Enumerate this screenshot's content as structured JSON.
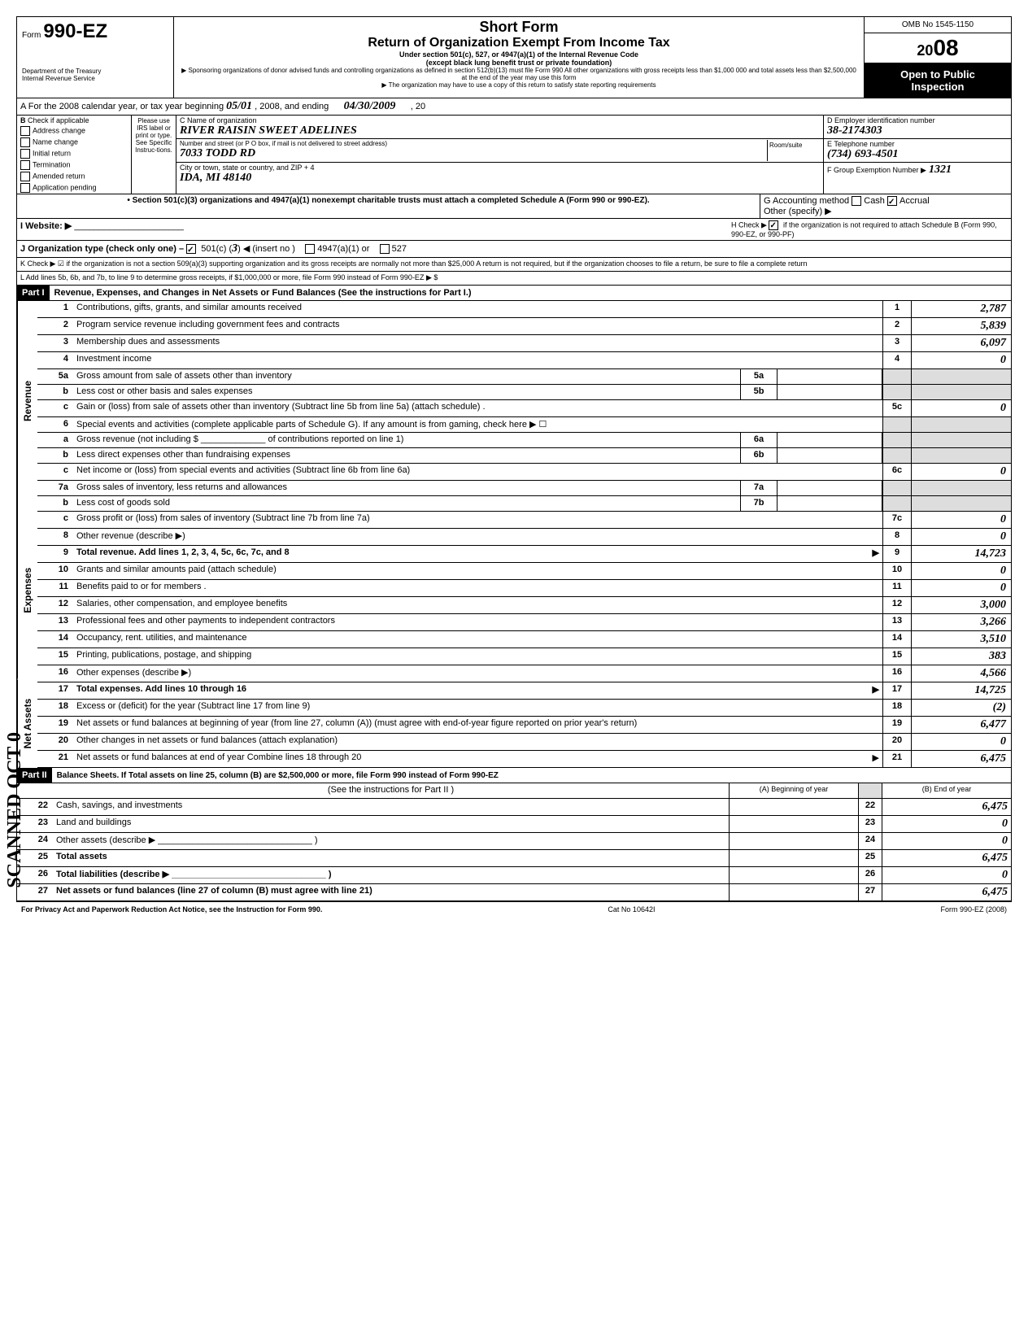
{
  "header": {
    "form_label": "Form",
    "form_number": "990-EZ",
    "dept1": "Department of the Treasury",
    "dept2": "Internal Revenue Service",
    "short_form": "Short Form",
    "title": "Return of Organization Exempt From Income Tax",
    "subtitle1": "Under section 501(c), 527, or 4947(a)(1) of the Internal Revenue Code",
    "subtitle2": "(except black lung benefit trust or private foundation)",
    "subtitle3": "▶ Sponsoring organizations of donor advised funds and controlling organizations as defined in section 512(b)(13) must file Form 990  All other organizations with gross receipts less than $1,000 000 and total assets less than $2,500,000 at the end of the year may use this form",
    "subtitle4": "▶ The organization may have to use a copy of this return to satisfy state reporting requirements",
    "omb": "OMB No 1545-1150",
    "year": "2008",
    "open": "Open to Public",
    "inspection": "Inspection"
  },
  "section_a": {
    "label": "A For the 2008 calendar year, or tax year beginning",
    "begin": "05/01",
    "mid": ", 2008, and ending",
    "end": "04/30/2009",
    "tail": ", 20"
  },
  "section_b": {
    "label": "B",
    "check_label": "Check if applicable",
    "items": [
      "Address change",
      "Name change",
      "Initial return",
      "Termination",
      "Amended return",
      "Application pending"
    ],
    "please": "Please use IRS label or print or type. See Specific Instruc-tions."
  },
  "section_c": {
    "c_label": "C Name of organization",
    "org_name": "RIVER RAISIN SWEET ADELINES",
    "addr_label": "Number and street (or P O box, if mail is not delivered to street address)",
    "room_label": "Room/suite",
    "address": "7033 TODD RD",
    "city_label": "City or town, state or country, and ZIP + 4",
    "city": "IDA, MI  48140"
  },
  "section_d": {
    "d_label": "D Employer identification number",
    "ein": "38-2174303",
    "e_label": "E Telephone number",
    "phone": "(734) 693-4501",
    "f_label": "F Group Exemption Number ▶",
    "group": "1321"
  },
  "section_g": {
    "bullet": "• Section 501(c)(3) organizations and 4947(a)(1) nonexempt charitable trusts must attach a completed Schedule A (Form 990 or 990-EZ).",
    "g_label": "G  Accounting method",
    "cash": "Cash",
    "accrual": "Accrual",
    "other": "Other (specify) ▶"
  },
  "section_h": {
    "h_label": "H  Check ▶",
    "h_text": "if the organization is not required to attach Schedule B (Form 990, 990-EZ, or 990-PF)"
  },
  "section_i": {
    "i_label": "I   Website: ▶"
  },
  "section_j": {
    "j_label": "J   Organization type (check only one) –",
    "opt1": "501(c) (",
    "opt1_num": "3",
    "opt1_tail": ") ◀ (insert no )",
    "opt2": "4947(a)(1) or",
    "opt3": "527"
  },
  "section_k": {
    "text": "K Check ▶ ☑ if the organization is not a section 509(a)(3) supporting organization and its gross receipts are normally not more than $25,000  A return is not required, but if the organization chooses to file a return, be sure to file a complete return"
  },
  "section_l": {
    "text": "L  Add lines 5b, 6b, and 7b, to line 9 to determine gross receipts, if $1,000,000 or more, file Form 990 instead of Form 990-EZ   ▶ $"
  },
  "part1": {
    "label": "Part I",
    "title": "Revenue, Expenses, and Changes in Net Assets or Fund Balances (See the instructions for Part I.)"
  },
  "side_labels": {
    "revenue": "Revenue",
    "expenses": "Expenses",
    "net_assets": "Net Assets"
  },
  "scanned": "SCANNED OCT 0",
  "lines": [
    {
      "n": "1",
      "desc": "Contributions, gifts, grants, and similar amounts received",
      "end_n": "1",
      "end_v": "2,787"
    },
    {
      "n": "2",
      "desc": "Program service revenue including government fees and contracts",
      "end_n": "2",
      "end_v": "5,839"
    },
    {
      "n": "3",
      "desc": "Membership dues and assessments",
      "end_n": "3",
      "end_v": "6,097"
    },
    {
      "n": "4",
      "desc": "Investment income",
      "end_n": "4",
      "end_v": "0"
    },
    {
      "n": "5a",
      "desc": "Gross amount from sale of assets other than inventory",
      "mid_n": "5a",
      "mid_v": ""
    },
    {
      "n": "b",
      "desc": "Less  cost or other basis and sales expenses",
      "mid_n": "5b",
      "mid_v": ""
    },
    {
      "n": "c",
      "desc": "Gain or (loss) from sale of assets other than inventory (Subtract line 5b from line 5a) (attach schedule) .",
      "end_n": "5c",
      "end_v": "0"
    },
    {
      "n": "6",
      "desc": "Special events and activities (complete applicable parts of Schedule G). If any amount is from gaming, check here ▶ ☐"
    },
    {
      "n": "a",
      "desc": "Gross revenue (not including $ _____________ of contributions reported on line 1)",
      "mid_n": "6a",
      "mid_v": ""
    },
    {
      "n": "b",
      "desc": "Less  direct expenses other than fundraising expenses",
      "mid_n": "6b",
      "mid_v": ""
    },
    {
      "n": "c",
      "desc": "Net income or (loss) from special events and activities (Subtract line 6b from line 6a)",
      "end_n": "6c",
      "end_v": "0"
    },
    {
      "n": "7a",
      "desc": "Gross sales of inventory, less returns and allowances",
      "mid_n": "7a",
      "mid_v": ""
    },
    {
      "n": "b",
      "desc": "Less  cost of goods sold",
      "mid_n": "7b",
      "mid_v": ""
    },
    {
      "n": "c",
      "desc": "Gross profit or (loss) from sales of inventory (Subtract line 7b from line 7a)",
      "end_n": "7c",
      "end_v": "0"
    },
    {
      "n": "8",
      "desc": "Other revenue (describe ▶",
      "end_n": "8",
      "end_v": "0",
      "paren": ")"
    },
    {
      "n": "9",
      "desc": "Total revenue. Add lines 1, 2, 3, 4, 5c, 6c, 7c, and 8",
      "end_n": "9",
      "end_v": "14,723",
      "bold": true,
      "arrow": true
    },
    {
      "n": "10",
      "desc": "Grants and similar amounts paid (attach schedule)",
      "end_n": "10",
      "end_v": "0"
    },
    {
      "n": "11",
      "desc": "Benefits paid to or for members .",
      "end_n": "11",
      "end_v": "0"
    },
    {
      "n": "12",
      "desc": "Salaries, other compensation, and employee benefits",
      "end_n": "12",
      "end_v": "3,000"
    },
    {
      "n": "13",
      "desc": "Professional fees and other payments to independent contractors",
      "end_n": "13",
      "end_v": "3,266"
    },
    {
      "n": "14",
      "desc": "Occupancy, rent. utilities, and maintenance",
      "end_n": "14",
      "end_v": "3,510"
    },
    {
      "n": "15",
      "desc": "Printing, publications, postage, and shipping",
      "end_n": "15",
      "end_v": "383"
    },
    {
      "n": "16",
      "desc": "Other expenses (describe ▶",
      "end_n": "16",
      "end_v": "4,566",
      "paren": ")"
    },
    {
      "n": "17",
      "desc": "Total expenses. Add lines 10 through 16",
      "end_n": "17",
      "end_v": "14,725",
      "bold": true,
      "arrow": true
    },
    {
      "n": "18",
      "desc": "Excess or (deficit) for the year (Subtract line 17 from line 9)",
      "end_n": "18",
      "end_v": "(2)"
    },
    {
      "n": "19",
      "desc": "Net assets or fund balances at beginning of year (from line 27, column (A)) (must agree with end-of-year figure reported on prior year's return)",
      "end_n": "19",
      "end_v": "6,477"
    },
    {
      "n": "20",
      "desc": "Other changes in net assets or fund balances (attach explanation)",
      "end_n": "20",
      "end_v": "0"
    },
    {
      "n": "21",
      "desc": "Net assets or fund balances at end of year Combine lines 18 through 20",
      "end_n": "21",
      "end_v": "6,475",
      "arrow": true
    }
  ],
  "part2": {
    "label": "Part II",
    "title": "Balance Sheets. If Total assets on line 25, column (B) are $2,500,000 or more, file Form 990 instead of Form 990-EZ",
    "instr": "(See the instructions for Part II )",
    "col_a": "(A) Beginning of year",
    "col_b": "(B) End of year"
  },
  "bal_lines": [
    {
      "n": "22",
      "desc": "Cash, savings, and investments",
      "a": "",
      "b": "6,475"
    },
    {
      "n": "23",
      "desc": "Land and buildings",
      "a": "",
      "b": "0"
    },
    {
      "n": "24",
      "desc": "Other assets (describe ▶  _______________________________ )",
      "a": "",
      "b": "0"
    },
    {
      "n": "25",
      "desc": "Total assets",
      "a": "",
      "b": "6,475",
      "bold": true
    },
    {
      "n": "26",
      "desc": "Total liabilities (describe ▶ _______________________________ )",
      "a": "",
      "b": "0",
      "bold": true
    },
    {
      "n": "27",
      "desc": "Net assets or fund balances (line 27 of column (B) must agree with line 21)",
      "a": "",
      "b": "6,475",
      "bold": true
    }
  ],
  "footer": {
    "privacy": "For Privacy Act and Paperwork Reduction Act Notice, see the Instruction for Form 990.",
    "cat": "Cat No 10642I",
    "form": "Form 990-EZ (2008)"
  }
}
